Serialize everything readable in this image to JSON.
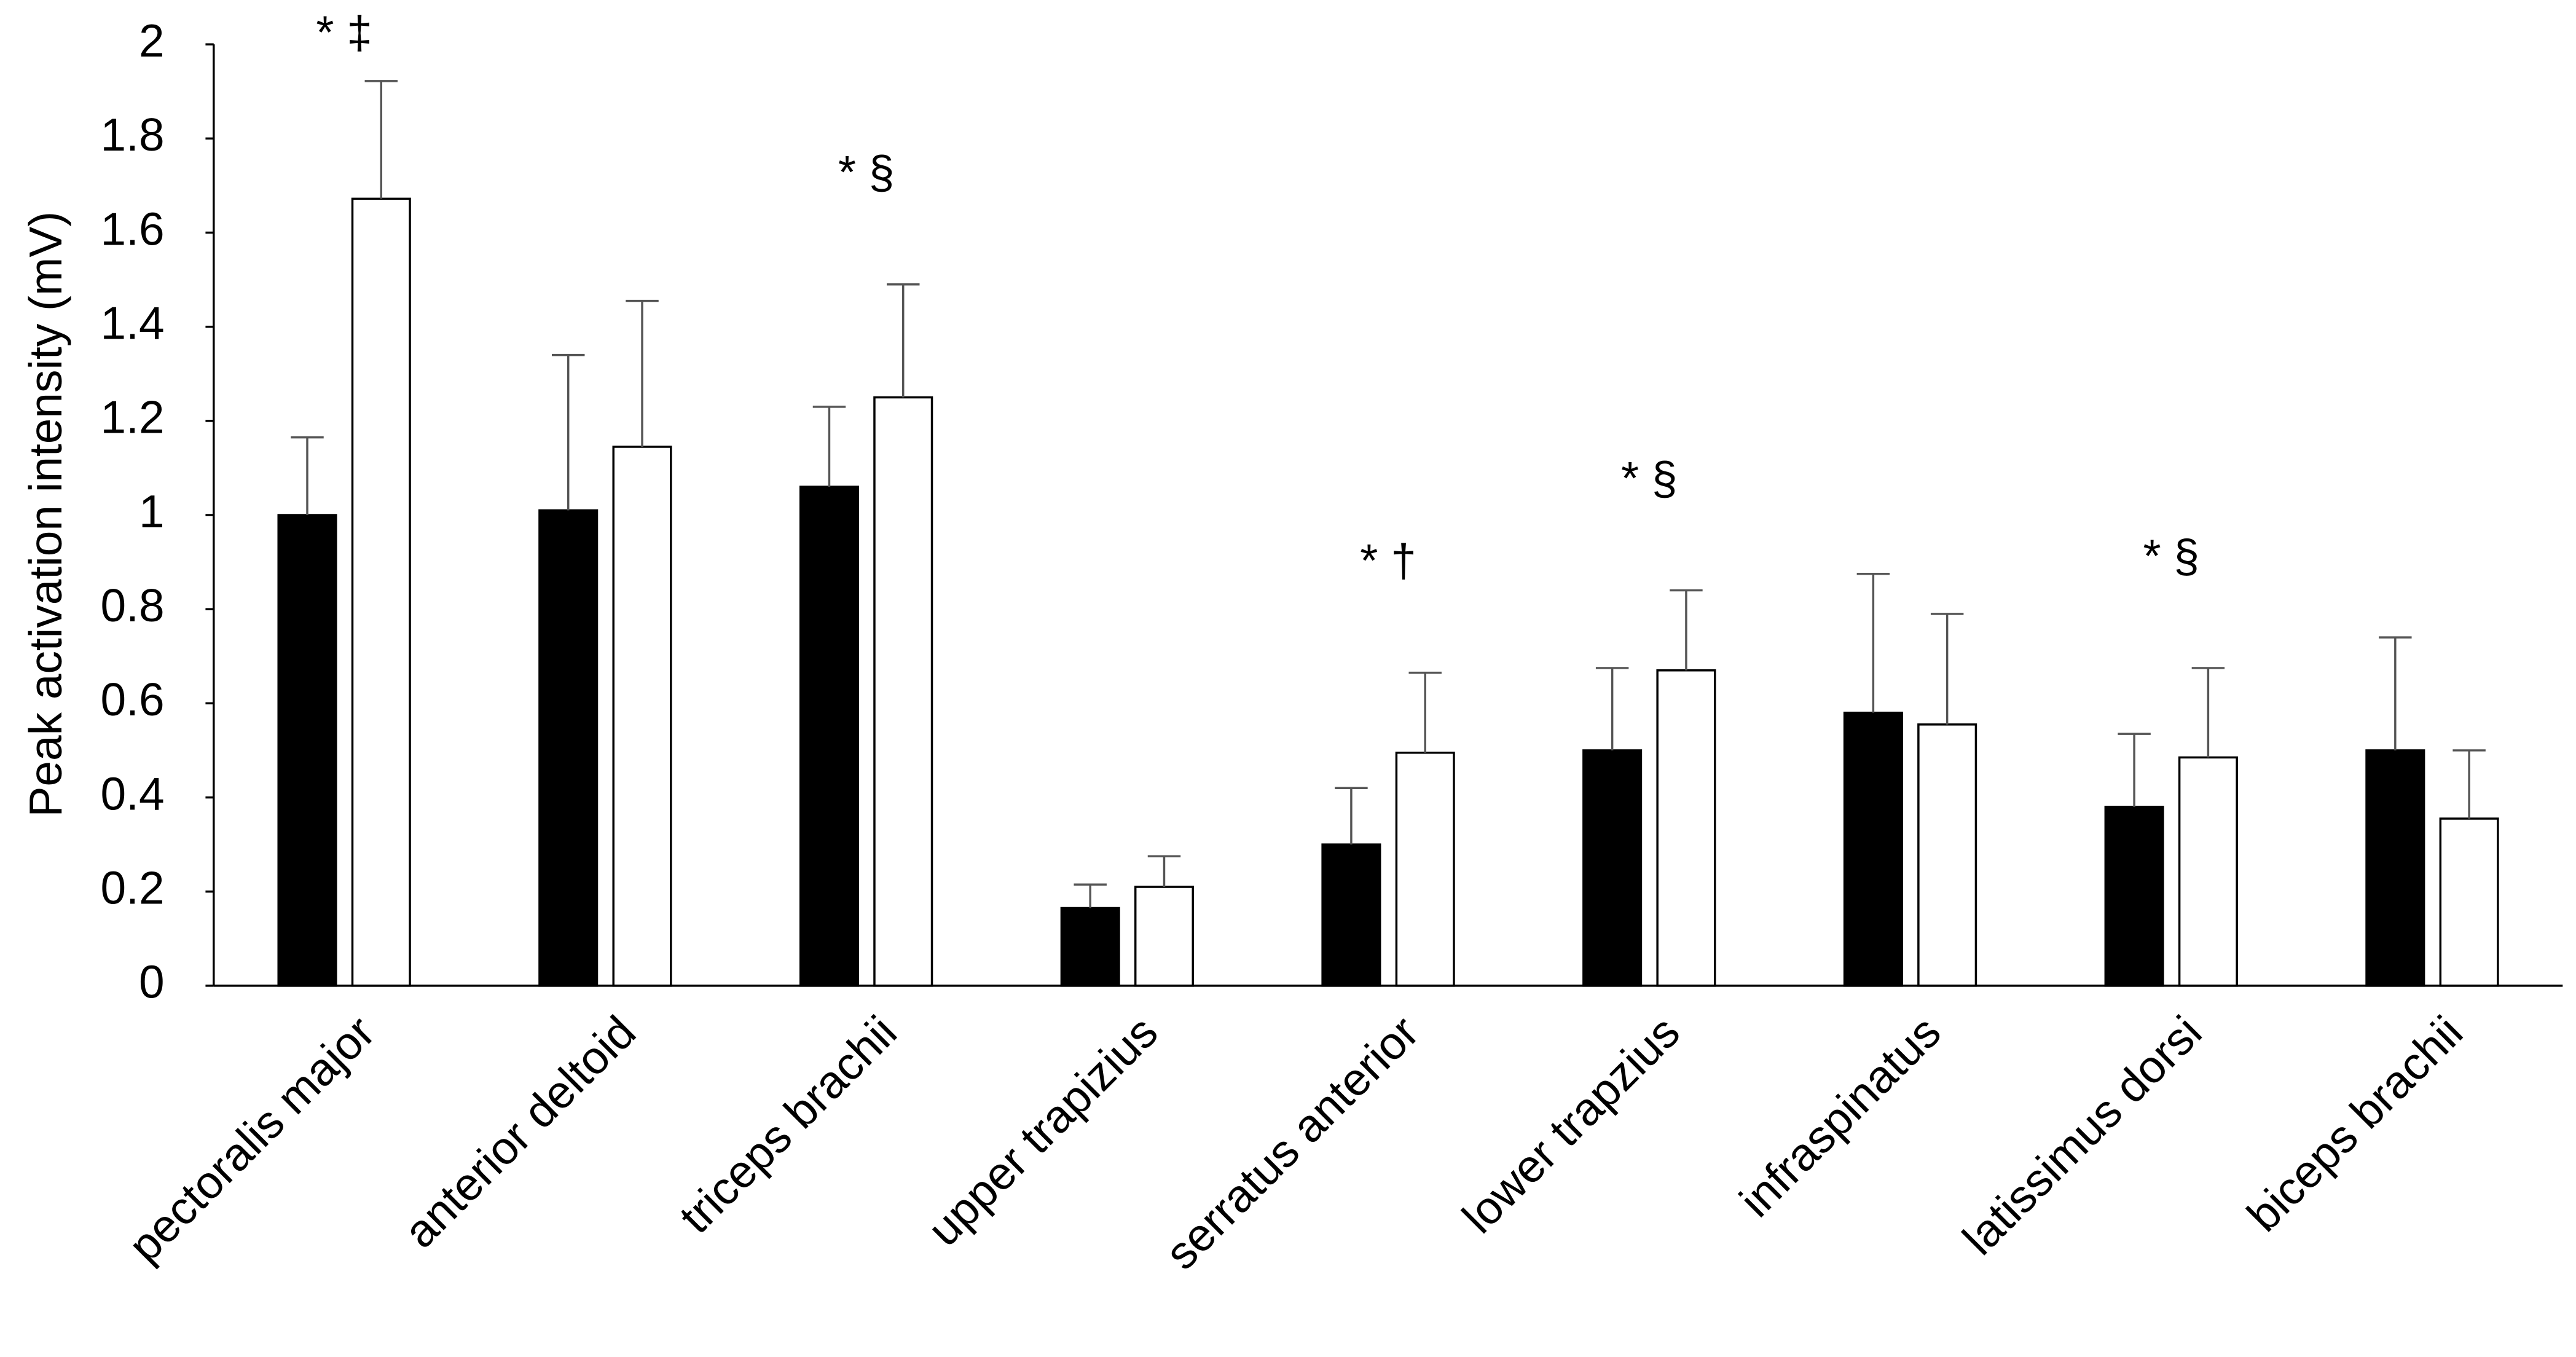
{
  "chart_data": {
    "type": "bar",
    "y_label": "Peak activation intensity (mV)",
    "categories": [
      "pectoralis major",
      "anterior deltoid",
      "triceps brachii",
      "upper trapizius",
      "serratus anterior",
      "lower trapzius",
      "infraspinatus",
      "latissimus dorsi",
      "biceps brachii"
    ],
    "series": [
      {
        "color": "#000000",
        "values": [
          1.0,
          1.01,
          1.06,
          0.165,
          0.3,
          0.5,
          0.58,
          0.38,
          0.5
        ],
        "errors": [
          0.165,
          0.33,
          0.17,
          0.05,
          0.12,
          0.175,
          0.295,
          0.155,
          0.24
        ]
      },
      {
        "color": "#ffffff",
        "values": [
          1.672,
          1.145,
          1.25,
          0.21,
          0.495,
          0.67,
          0.555,
          0.485,
          0.355
        ],
        "errors": [
          0.25,
          0.31,
          0.24,
          0.065,
          0.17,
          0.17,
          0.235,
          0.19,
          0.145
        ]
      }
    ],
    "annotations": [
      "* ‡",
      null,
      "* §",
      null,
      "* †",
      "* §",
      null,
      "* §",
      null
    ],
    "ylim": [
      0,
      2
    ],
    "yticks": [
      0,
      0.2,
      0.4,
      0.6,
      0.8,
      1,
      1.2,
      1.4,
      1.6,
      1.8,
      2
    ],
    "grid": false
  }
}
